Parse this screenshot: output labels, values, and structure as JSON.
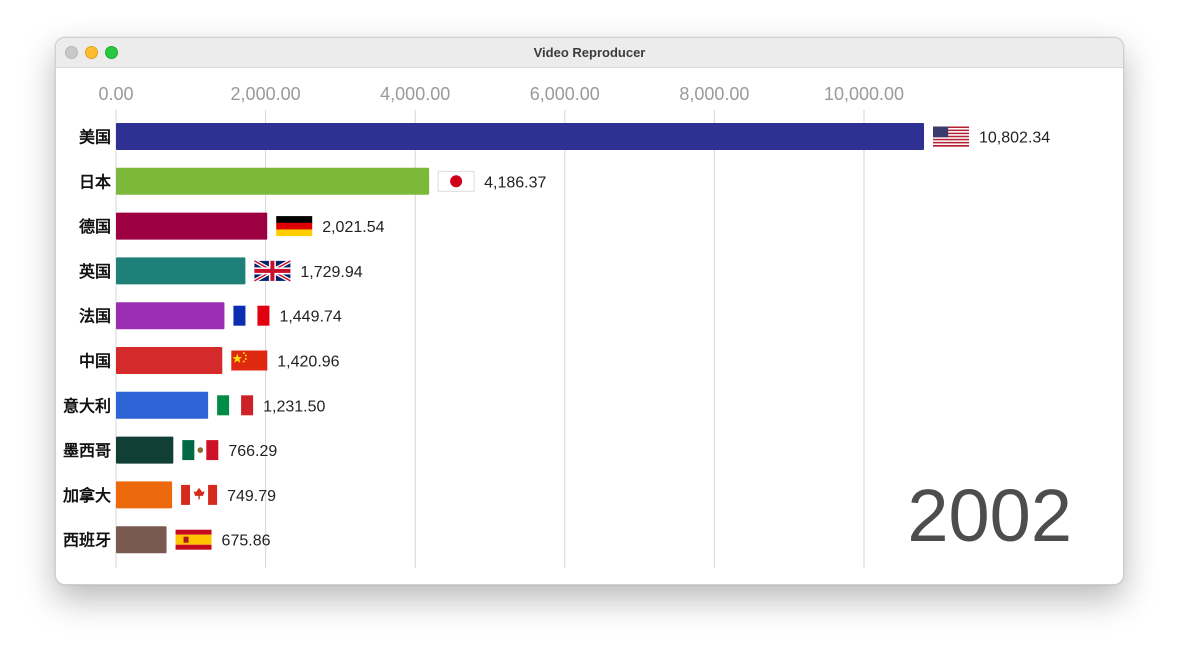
{
  "window": {
    "title": "Video Reproducer"
  },
  "chart_data": {
    "type": "bar",
    "orientation": "horizontal",
    "title": "",
    "year": "2002",
    "xlim": [
      0,
      11000
    ],
    "xticks": [
      0,
      2000,
      4000,
      6000,
      8000,
      10000
    ],
    "xtick_labels": [
      "0.00",
      "2,000.00",
      "4,000.00",
      "6,000.00",
      "8,000.00",
      "10,000.00"
    ],
    "grid": "vertical",
    "categories": [
      "美国",
      "日本",
      "德国",
      "英国",
      "法国",
      "中国",
      "意大利",
      "墨西哥",
      "加拿大",
      "西班牙"
    ],
    "values": [
      10802.34,
      4186.37,
      2021.54,
      1729.94,
      1449.74,
      1420.96,
      1231.5,
      766.29,
      749.79,
      675.86
    ],
    "value_labels": [
      "10,802.34",
      "4,186.37",
      "2,021.54",
      "1,729.94",
      "1,449.74",
      "1,420.96",
      "1,231.50",
      "766.29",
      "749.79",
      "675.86"
    ],
    "colors": [
      "#2e3192",
      "#7cb83a",
      "#9c0040",
      "#1e8079",
      "#9a2db2",
      "#d42a2c",
      "#2e63d6",
      "#113e35",
      "#ed6a0c",
      "#7a5a50"
    ],
    "flags": [
      "flag-us-icon",
      "flag-jp-icon",
      "flag-de-icon",
      "flag-gb-icon",
      "flag-fr-icon",
      "flag-cn-icon",
      "flag-it-icon",
      "flag-mx-icon",
      "flag-ca-icon",
      "flag-es-icon"
    ]
  }
}
